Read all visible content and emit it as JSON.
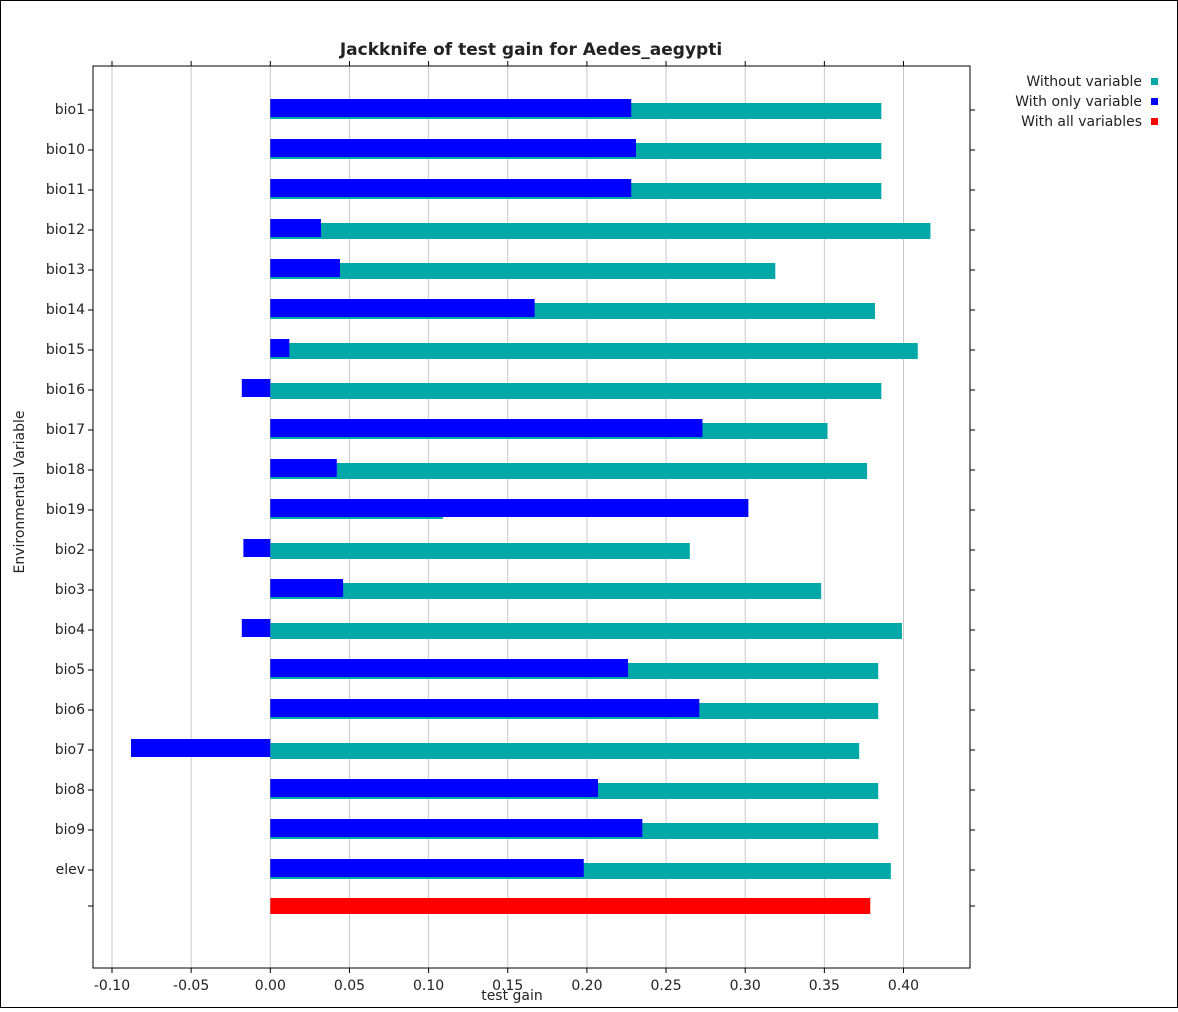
{
  "chart_data": {
    "type": "hbar",
    "title": "Jackknife of test gain for Aedes_aegypti",
    "x_label": "test gain",
    "y_label": "Environmental Variable",
    "categories": [
      "bio1",
      "bio10",
      "bio11",
      "bio12",
      "bio13",
      "bio14",
      "bio15",
      "bio16",
      "bio17",
      "bio18",
      "bio19",
      "bio2",
      "bio3",
      "bio4",
      "bio5",
      "bio6",
      "bio7",
      "bio8",
      "bio9",
      "elev",
      null
    ],
    "series": [
      {
        "name": "Without variable",
        "color": "#00a8a8",
        "values": [
          0.386,
          0.386,
          0.386,
          0.417,
          0.319,
          0.382,
          0.409,
          0.386,
          0.352,
          0.377,
          0.109,
          0.265,
          0.348,
          0.399,
          0.384,
          0.384,
          0.372,
          0.384,
          0.384,
          0.392,
          null
        ]
      },
      {
        "name": "With only variable",
        "color": "#0000ff",
        "values": [
          0.228,
          0.231,
          0.228,
          0.032,
          0.044,
          0.167,
          0.012,
          -0.018,
          0.273,
          0.042,
          0.302,
          -0.017,
          0.046,
          -0.018,
          0.226,
          0.271,
          -0.088,
          0.207,
          0.235,
          0.198,
          null
        ]
      },
      {
        "name": "With all variables",
        "color": "#ff0000",
        "values": [
          null,
          null,
          null,
          null,
          null,
          null,
          null,
          null,
          null,
          null,
          null,
          null,
          null,
          null,
          null,
          null,
          null,
          null,
          null,
          null,
          0.379
        ]
      }
    ],
    "xlim": [
      -0.112,
      0.442
    ],
    "xticks": [
      {
        "value": -0.1,
        "label": "-0.10"
      },
      {
        "value": -0.05,
        "label": "-0.05"
      },
      {
        "value": 0,
        "label": "0.00"
      },
      {
        "value": 0.05,
        "label": "0.05"
      },
      {
        "value": 0.1,
        "label": "0.10"
      },
      {
        "value": 0.15,
        "label": "0.15"
      },
      {
        "value": 0.2,
        "label": "0.20"
      },
      {
        "value": 0.25,
        "label": "0.25"
      },
      {
        "value": 0.3,
        "label": "0.30"
      },
      {
        "value": 0.35,
        "label": "0.35"
      },
      {
        "value": 0.4,
        "label": "0.40"
      }
    ],
    "grid": true,
    "legend": "right"
  }
}
